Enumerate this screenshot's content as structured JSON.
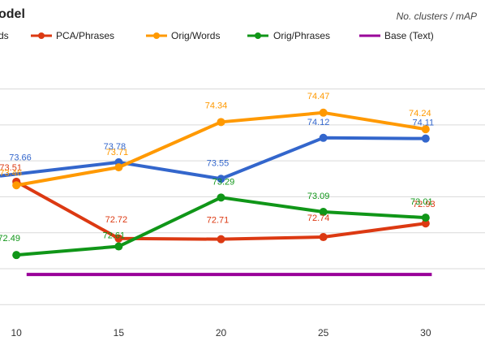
{
  "chart_data": {
    "type": "line",
    "title": "odel",
    "subtitle": "No. clusters / mAP",
    "x": [
      10,
      15,
      20,
      25,
      30
    ],
    "xlim": [
      9.2,
      32.9
    ],
    "ylim": [
      71.6,
      75.45
    ],
    "grid": true,
    "legend_position": "top",
    "series": [
      {
        "name": "Orig/Words",
        "legend_label": "ds",
        "color": "#3366cc",
        "values": [
          73.66,
          73.78,
          73.55,
          74.12,
          74.11
        ],
        "labels": [
          "73.66",
          "73.78",
          "73.55",
          "74.12",
          "74.11"
        ]
      },
      {
        "name": "PCA/Phrases",
        "color": "#dc3912",
        "values": [
          73.51,
          72.72,
          72.71,
          72.74,
          72.93
        ],
        "labels": [
          "73.51",
          "72.72",
          "72.71",
          "72.74",
          "72.93"
        ]
      },
      {
        "name": "Orig/Words",
        "color": "#ff9900",
        "values": [
          73.46,
          73.71,
          74.34,
          74.47,
          74.24
        ],
        "labels": [
          "73.46",
          "73.71",
          "74.34",
          "74.47",
          "74.24"
        ]
      },
      {
        "name": "Orig/Phrases",
        "color": "#109618",
        "values": [
          72.49,
          72.61,
          73.29,
          73.09,
          73.01
        ],
        "labels": [
          "72.49",
          "72.61",
          "73.29",
          "73.09",
          "73.01"
        ]
      },
      {
        "name": "Base (Text)",
        "color": "#990099",
        "values": [
          72.22,
          72.22,
          72.22,
          72.22,
          72.22
        ],
        "labels": []
      }
    ]
  }
}
